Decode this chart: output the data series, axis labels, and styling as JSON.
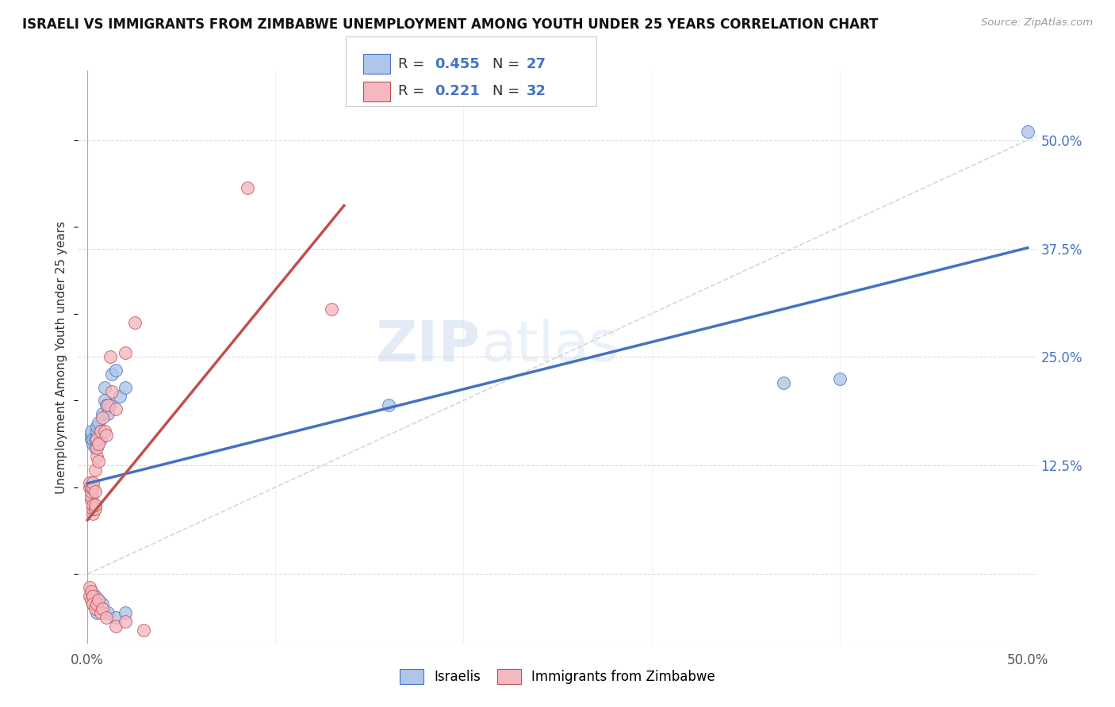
{
  "title": "ISRAELI VS IMMIGRANTS FROM ZIMBABWE UNEMPLOYMENT AMONG YOUTH UNDER 25 YEARS CORRELATION CHART",
  "source": "Source: ZipAtlas.com",
  "ylabel": "Unemployment Among Youth under 25 years",
  "xlim": [
    -0.005,
    0.505
  ],
  "ylim": [
    -0.08,
    0.58
  ],
  "x_ticks": [
    0.0,
    0.5
  ],
  "x_tick_labels": [
    "0.0%",
    "50.0%"
  ],
  "y_ticks_right": [
    0.0,
    0.125,
    0.25,
    0.375,
    0.5
  ],
  "y_tick_labels_right": [
    "",
    "12.5%",
    "25.0%",
    "37.5%",
    "50.0%"
  ],
  "R_israeli": 0.455,
  "N_israeli": 27,
  "R_zimbabwe": 0.221,
  "N_zimbabwe": 32,
  "israeli_color": "#aec6e8",
  "zimbabwe_color": "#f4b8c1",
  "trendline_israeli_color": "#4472c4",
  "trendline_zimbabwe_color": "#c0504d",
  "diagonal_color": "#cccccc",
  "background_color": "#ffffff",
  "watermark_zip": "ZIP",
  "watermark_atlas": "atlas",
  "israeli_x": [
    0.002,
    0.002,
    0.002,
    0.003,
    0.003,
    0.004,
    0.004,
    0.005,
    0.005,
    0.005,
    0.006,
    0.007,
    0.007,
    0.008,
    0.009,
    0.009,
    0.01,
    0.011,
    0.012,
    0.013,
    0.015,
    0.017,
    0.02,
    0.16,
    0.37,
    0.4,
    0.5
  ],
  "israeli_y": [
    0.155,
    0.16,
    0.165,
    0.15,
    0.155,
    0.145,
    0.155,
    0.155,
    0.165,
    0.17,
    0.175,
    0.155,
    0.165,
    0.185,
    0.2,
    0.215,
    0.195,
    0.185,
    0.195,
    0.23,
    0.235,
    0.205,
    0.215,
    0.195,
    0.22,
    0.225,
    0.51
  ],
  "zimbabwe_x": [
    0.001,
    0.001,
    0.002,
    0.002,
    0.002,
    0.002,
    0.003,
    0.003,
    0.003,
    0.003,
    0.003,
    0.004,
    0.004,
    0.004,
    0.004,
    0.005,
    0.005,
    0.005,
    0.006,
    0.006,
    0.007,
    0.008,
    0.009,
    0.01,
    0.011,
    0.012,
    0.013,
    0.015,
    0.02,
    0.025,
    0.085,
    0.13
  ],
  "zimbabwe_y": [
    0.1,
    0.105,
    0.085,
    0.09,
    0.095,
    0.1,
    0.07,
    0.075,
    0.08,
    0.1,
    0.105,
    0.075,
    0.08,
    0.095,
    0.12,
    0.135,
    0.145,
    0.155,
    0.13,
    0.15,
    0.165,
    0.18,
    0.165,
    0.16,
    0.195,
    0.25,
    0.21,
    0.19,
    0.255,
    0.29,
    0.445,
    0.305
  ],
  "israeli_below_x": [
    0.002,
    0.003,
    0.003,
    0.004,
    0.005,
    0.005,
    0.006,
    0.008,
    0.011,
    0.015,
    0.02
  ],
  "israeli_below_y": [
    -0.02,
    -0.025,
    -0.035,
    -0.025,
    -0.04,
    -0.045,
    -0.03,
    -0.035,
    -0.045,
    -0.05,
    -0.045
  ],
  "zimbabwe_below_x": [
    0.001,
    0.001,
    0.002,
    0.002,
    0.003,
    0.003,
    0.004,
    0.005,
    0.006,
    0.007,
    0.008,
    0.01,
    0.015,
    0.02,
    0.03
  ],
  "zimbabwe_below_y": [
    -0.015,
    -0.025,
    -0.02,
    -0.03,
    -0.025,
    -0.035,
    -0.04,
    -0.035,
    -0.03,
    -0.045,
    -0.04,
    -0.05,
    -0.06,
    -0.055,
    -0.065
  ]
}
